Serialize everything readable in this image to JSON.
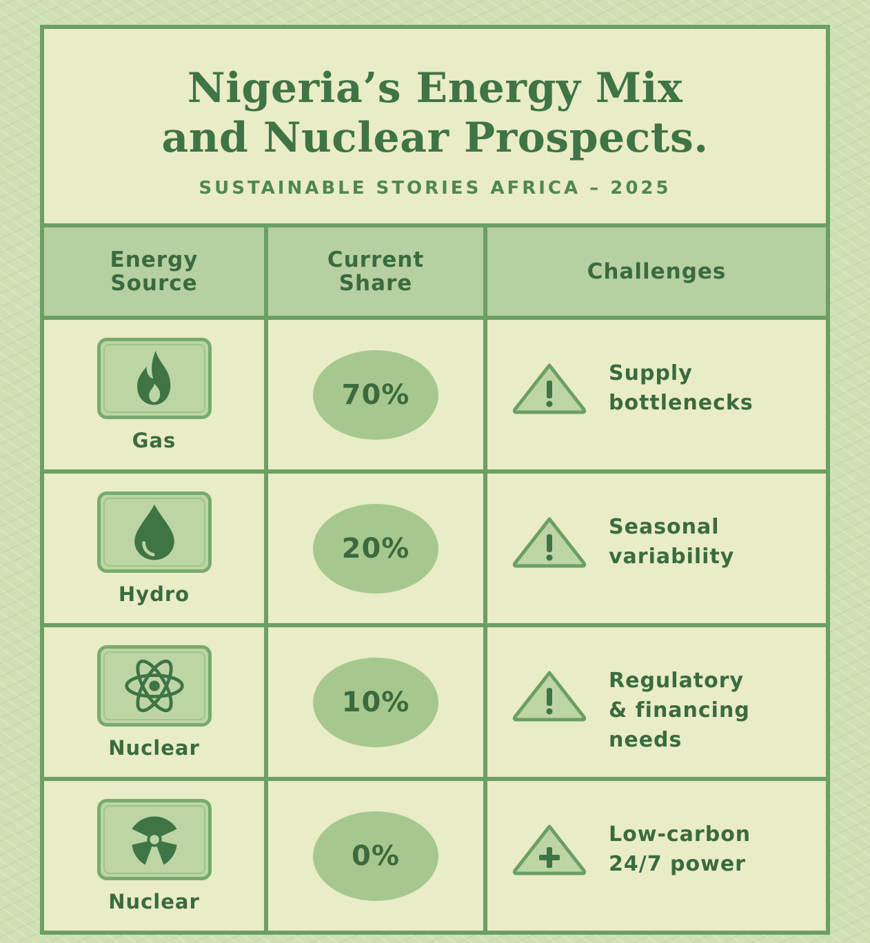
{
  "header": {
    "title_line1": "Nigeria’s Energy Mix",
    "title_line2": "and Nuclear Prospects.",
    "subtitle": "SUSTAINABLE STORIES AFRICA – 2025"
  },
  "table": {
    "columns": {
      "source_line1": "Energy",
      "source_line2": "Source",
      "share_line1": "Current",
      "share_line2": "Share",
      "challenges": "Challenges"
    },
    "rows": [
      {
        "source": "Gas",
        "icon": "flame-icon",
        "share": "70%",
        "challenge_icon": "warning-icon",
        "challenge": "Supply\nbottlenecks"
      },
      {
        "source": "Hydro",
        "icon": "water-drop-icon",
        "share": "20%",
        "challenge_icon": "warning-icon",
        "challenge": "Seasonal\nvariability"
      },
      {
        "source": "Nuclear",
        "icon": "atom-icon",
        "share": "10%",
        "challenge_icon": "warning-icon",
        "challenge": "Regulatory\n& financing\nneeds"
      },
      {
        "source": "Nuclear",
        "icon": "radiation-icon",
        "share": "0%",
        "challenge_icon": "plus-triangle-icon",
        "challenge": "Low-carbon\n24/7 power"
      }
    ]
  },
  "colors": {
    "background": "#cfe0b4",
    "panel": "#e9ecc6",
    "border": "#6b9f64",
    "header_fill": "#b6d0a2",
    "accent_dark": "#3f7444",
    "oval_fill": "#a6c88e"
  }
}
